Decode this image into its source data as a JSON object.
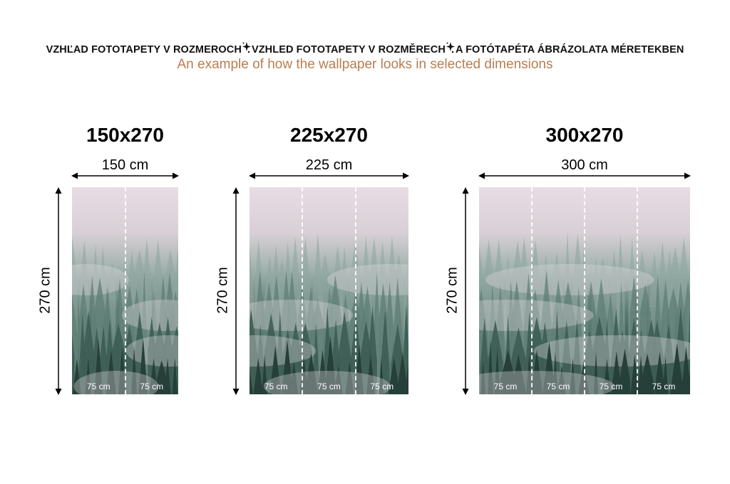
{
  "header": {
    "line1": [
      "VZHĽAD FOTOTAPETY V ROZMEROCH",
      "VZHLED FOTOTAPETY V ROZMĚRECH",
      "A FOTÓTAPÉTA ÁBRÁZOLATA MÉRETEKBEN"
    ],
    "separator_icon": "sparkle-icon",
    "line2": "An example of how the wallpaper looks in selected dimensions",
    "line2_color": "#b97d4f"
  },
  "panels": [
    {
      "title": "150x270",
      "width_label": "150 cm",
      "height_label": "270 cm",
      "segments": [
        "75 cm",
        "75 cm"
      ]
    },
    {
      "title": "225x270",
      "width_label": "225 cm",
      "height_label": "270 cm",
      "segments": [
        "75 cm",
        "75 cm",
        "75 cm"
      ]
    },
    {
      "title": "300x270",
      "width_label": "300 cm",
      "height_label": "270 cm",
      "segments": [
        "75 cm",
        "75 cm",
        "75 cm",
        "75 cm"
      ]
    }
  ]
}
